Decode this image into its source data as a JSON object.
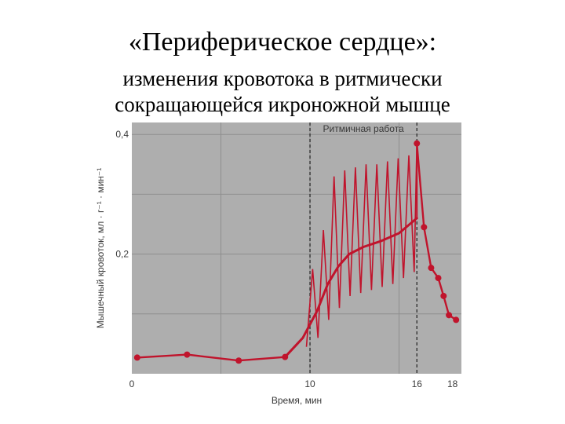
{
  "slide": {
    "title": "«Периферическое сердце»:",
    "subtitle_line1": "изменения кровотока в ритмически",
    "subtitle_line2": "сокращающейся икроножной мышце"
  },
  "colors": {
    "plot_background": "#aeaeae",
    "curve": "#c0142c",
    "grid": "#8f8f8f",
    "dashed_line": "#2a2a2a"
  },
  "chart_data": {
    "type": "line",
    "xlabel": "Время, мин",
    "ylabel": "Мышечный кровоток, мл · г⁻¹ · мин⁻¹",
    "annotation": "Ритмичная работа",
    "x_ticks": [
      "0",
      "10",
      "16",
      "18"
    ],
    "y_ticks": [
      "0,2",
      "0,4"
    ],
    "xlim": [
      0,
      18.5
    ],
    "ylim": [
      0,
      0.42
    ],
    "work_period": [
      10,
      16
    ],
    "grid": true,
    "series": [
      {
        "values": [
          {
            "x": 0.3,
            "y": 0.027
          },
          {
            "x": 3.1,
            "y": 0.032
          },
          {
            "x": 6.0,
            "y": 0.022
          },
          {
            "x": 8.6,
            "y": 0.028
          },
          {
            "x": 16.0,
            "y": 0.385
          },
          {
            "x": 16.4,
            "y": 0.245
          },
          {
            "x": 16.8,
            "y": 0.177
          },
          {
            "x": 17.2,
            "y": 0.16
          },
          {
            "x": 17.5,
            "y": 0.13
          },
          {
            "x": 17.8,
            "y": 0.098
          },
          {
            "x": 18.2,
            "y": 0.09
          }
        ]
      },
      {
        "values": [
          {
            "x": 8.6,
            "y": 0.028
          },
          {
            "x": 9.6,
            "y": 0.06
          },
          {
            "x": 10.4,
            "y": 0.105
          },
          {
            "x": 11.0,
            "y": 0.15
          },
          {
            "x": 11.6,
            "y": 0.18
          },
          {
            "x": 12.2,
            "y": 0.2
          },
          {
            "x": 13.0,
            "y": 0.212
          },
          {
            "x": 14.0,
            "y": 0.222
          },
          {
            "x": 15.0,
            "y": 0.235
          },
          {
            "x": 16.0,
            "y": 0.26
          }
        ]
      },
      {
        "values": [
          {
            "x": 9.8,
            "y": 0.045
          },
          {
            "x": 10.15,
            "y": 0.175
          },
          {
            "x": 10.45,
            "y": 0.06
          },
          {
            "x": 10.75,
            "y": 0.24
          },
          {
            "x": 11.05,
            "y": 0.09
          },
          {
            "x": 11.35,
            "y": 0.33
          },
          {
            "x": 11.65,
            "y": 0.11
          },
          {
            "x": 11.95,
            "y": 0.34
          },
          {
            "x": 12.25,
            "y": 0.13
          },
          {
            "x": 12.55,
            "y": 0.345
          },
          {
            "x": 12.85,
            "y": 0.135
          },
          {
            "x": 13.15,
            "y": 0.35
          },
          {
            "x": 13.45,
            "y": 0.14
          },
          {
            "x": 13.75,
            "y": 0.35
          },
          {
            "x": 14.05,
            "y": 0.145
          },
          {
            "x": 14.35,
            "y": 0.355
          },
          {
            "x": 14.65,
            "y": 0.15
          },
          {
            "x": 14.95,
            "y": 0.36
          },
          {
            "x": 15.25,
            "y": 0.16
          },
          {
            "x": 15.55,
            "y": 0.365
          },
          {
            "x": 15.85,
            "y": 0.17
          },
          {
            "x": 16.0,
            "y": 0.385
          }
        ]
      }
    ]
  }
}
